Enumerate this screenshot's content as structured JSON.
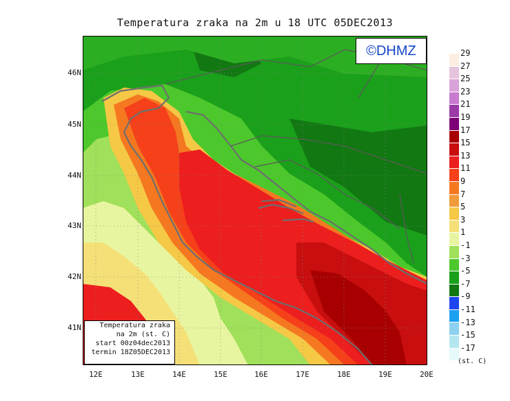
{
  "title": "Temperatura zraka na 2m u 18 UTC 05DEC2013",
  "logo": "©DHMZ",
  "lat_labels": [
    "46N",
    "45N",
    "44N",
    "43N",
    "42N",
    "41N"
  ],
  "lon_labels": [
    "12E",
    "13E",
    "14E",
    "15E",
    "16E",
    "17E",
    "18E",
    "19E",
    "20E"
  ],
  "info": {
    "line1": "Temperatura zraka",
    "line2": "na 2m (st. C)",
    "line3": "start 00z04dec2013",
    "line4": "termin 18Z05DEC2013"
  },
  "legend": {
    "labels": [
      "29",
      "27",
      "25",
      "23",
      "21",
      "19",
      "17",
      "15",
      "13",
      "11",
      "9",
      "7",
      "5",
      "3",
      "1",
      "-1",
      "-3",
      "-5",
      "-7",
      "-9",
      "-11",
      "-13",
      "-15",
      "-17"
    ],
    "colors": [
      "#fbeee0",
      "#e6c3dc",
      "#d9a3d9",
      "#c87ad0",
      "#9c3aa8",
      "#7d0077",
      "#a80000",
      "#c80e0e",
      "#ec1e1e",
      "#f5401a",
      "#f57820",
      "#f09a3c",
      "#f5c845",
      "#f5e078",
      "#e8f5a0",
      "#a0e05a",
      "#4cc82c",
      "#1aa01a",
      "#127812",
      "#1e46f0",
      "#1ea0f0",
      "#8cd2f0",
      "#b4e6f0",
      "#e6f8fa"
    ],
    "units": "(st. C)"
  }
}
